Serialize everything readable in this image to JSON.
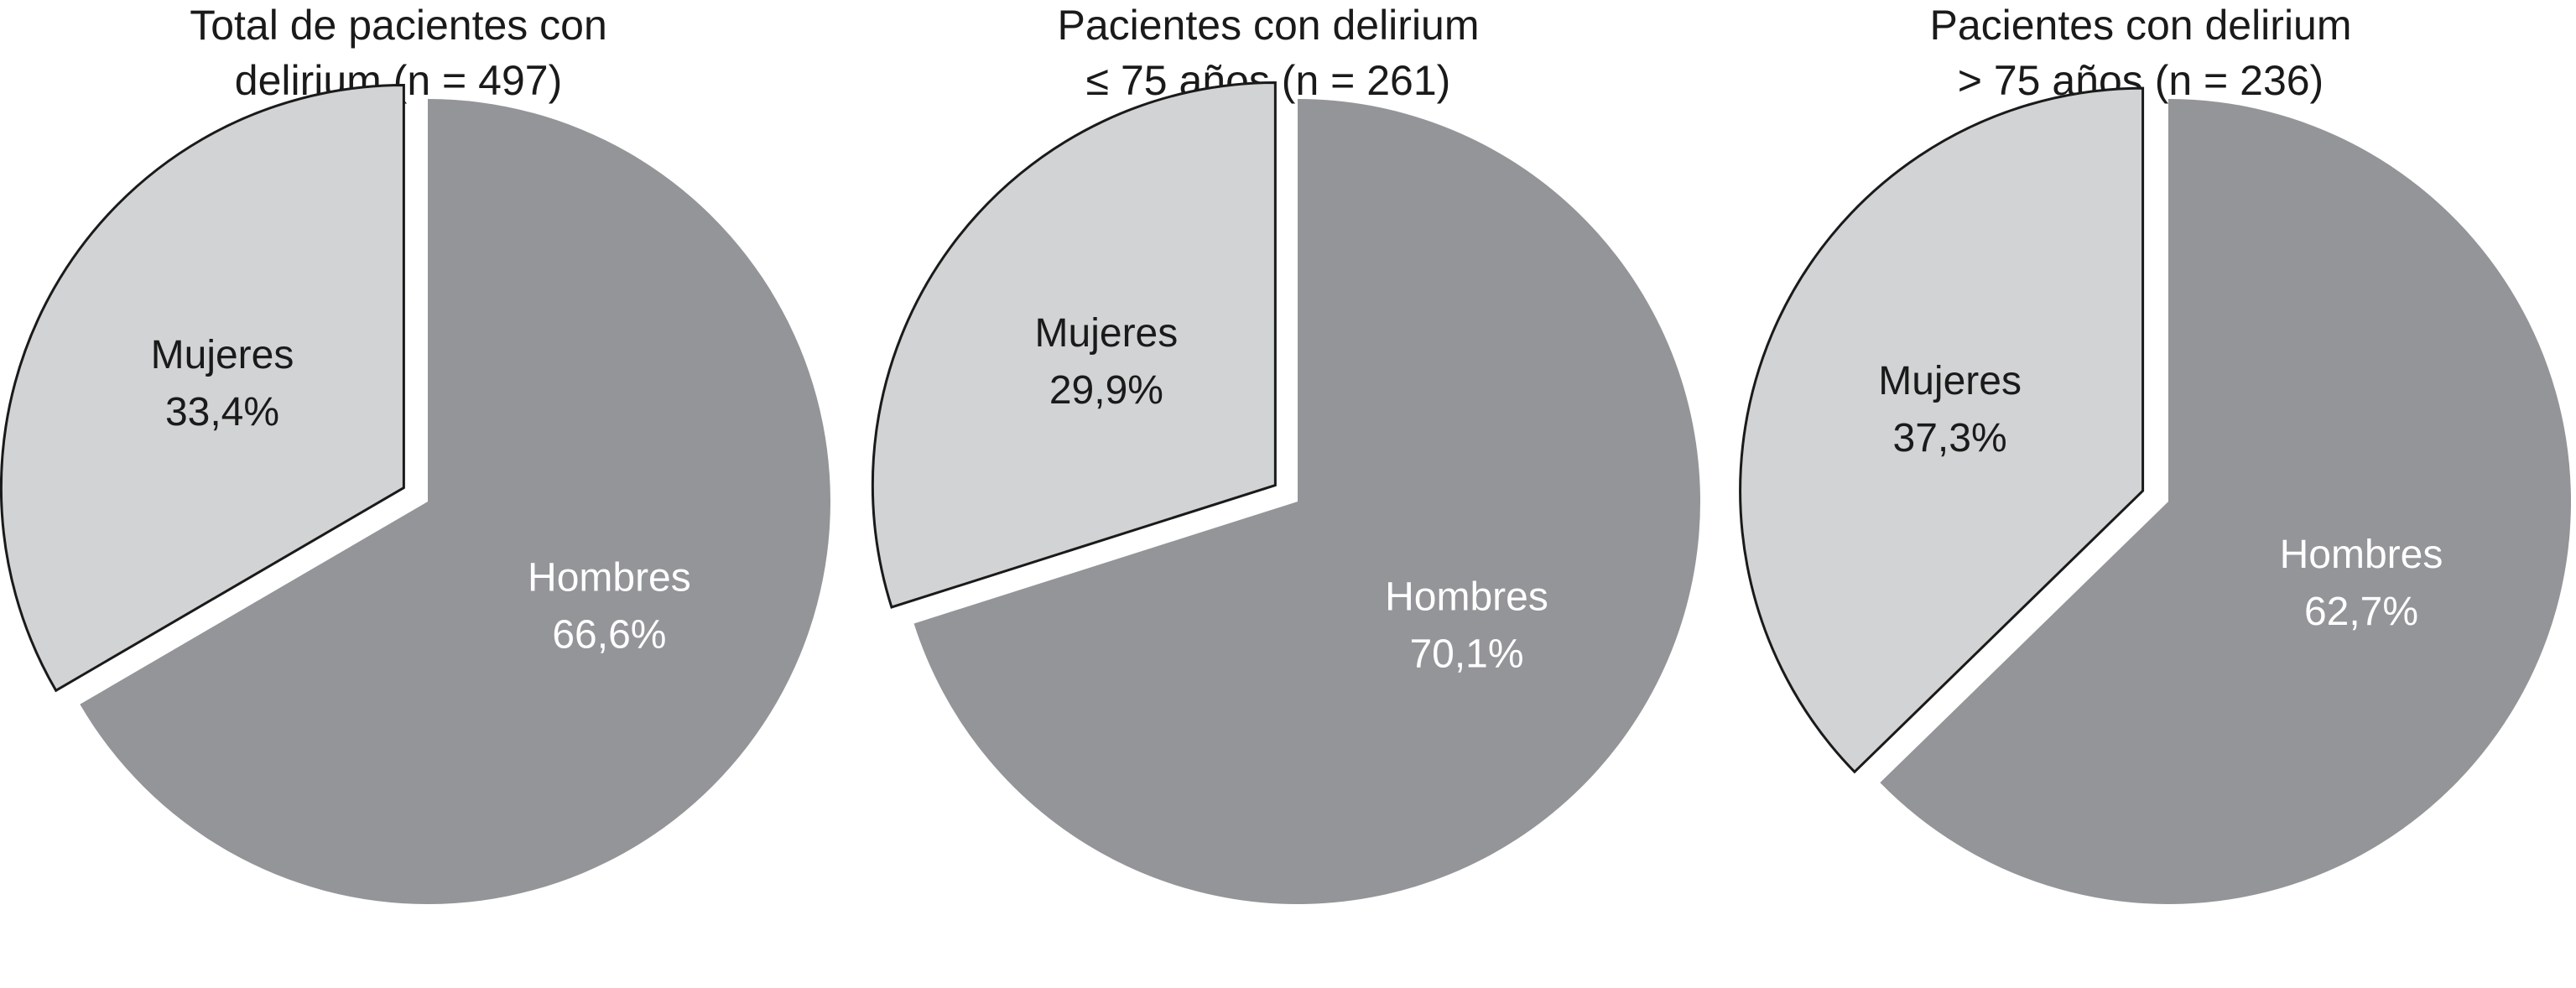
{
  "chart_data": [
    {
      "type": "pie",
      "title_lines": [
        "Total de pacientes con",
        "delirium (n = 497)"
      ],
      "slices": [
        {
          "label": "Hombres",
          "value_label": "66,6%",
          "value": 66.6,
          "color": "#939598",
          "text_color": "#ffffff"
        },
        {
          "label": "Mujeres",
          "value_label": "33,4%",
          "value": 33.4,
          "color": "#d1d3d4",
          "text_color": "#1a1a1a"
        }
      ]
    },
    {
      "type": "pie",
      "title_lines": [
        "Pacientes con delirium",
        "≤ 75 años (n = 261)"
      ],
      "slices": [
        {
          "label": "Hombres",
          "value_label": "70,1%",
          "value": 70.1,
          "color": "#939598",
          "text_color": "#ffffff"
        },
        {
          "label": "Mujeres",
          "value_label": "29,9%",
          "value": 29.9,
          "color": "#d1d3d4",
          "text_color": "#1a1a1a"
        }
      ]
    },
    {
      "type": "pie",
      "title_lines": [
        "Pacientes con delirium",
        "> 75 años (n = 236)"
      ],
      "slices": [
        {
          "label": "Hombres",
          "value_label": "62,7%",
          "value": 62.7,
          "color": "#939598",
          "text_color": "#ffffff"
        },
        {
          "label": "Mujeres",
          "value_label": "37,3%",
          "value": 37.3,
          "color": "#d1d3d4",
          "text_color": "#1a1a1a"
        }
      ]
    }
  ]
}
